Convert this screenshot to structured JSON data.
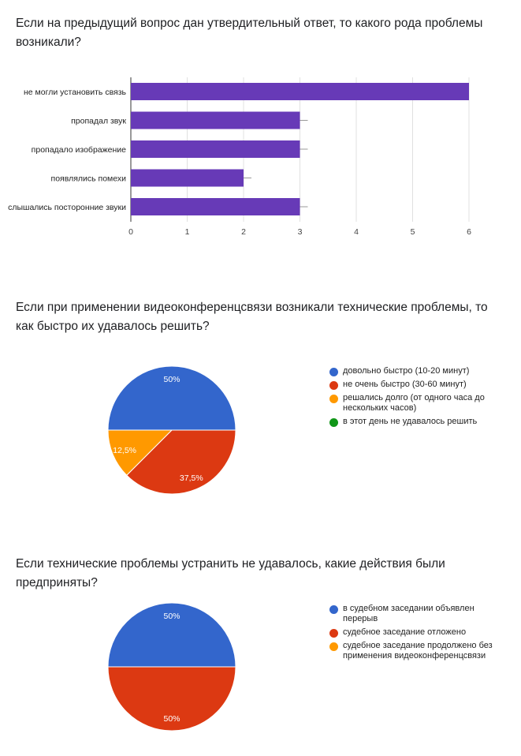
{
  "chart_data": [
    {
      "type": "bar",
      "orientation": "horizontal",
      "title": "Если на предыдущий вопрос дан утвердительный ответ, то какого рода проблемы возникали?",
      "categories": [
        "не могли установить связь",
        "пропадал звук",
        "пропадало изображение",
        "появлялись помехи",
        "слышались посторонние звуки"
      ],
      "values": [
        6,
        3,
        3,
        2,
        3
      ],
      "xlim": [
        0,
        6
      ],
      "xticks": [
        "0",
        "1",
        "2",
        "3",
        "4",
        "5",
        "6"
      ],
      "grid": true,
      "color": "#673ab7"
    },
    {
      "type": "pie",
      "title": "Если при применении видеоконференцсвязи возникали технические проблемы, то как быстро их удавалось решить?",
      "labels": [
        "довольно быстро (10-20 минут)",
        "не очень быстро (30-60 минут)",
        "решались долго (от одного часа до нескольких часов)",
        "в этот день не удавалось решить"
      ],
      "values": [
        50,
        37.5,
        12.5,
        0
      ],
      "slice_labels": [
        "50%",
        "37,5%",
        "12,5%",
        ""
      ],
      "colors": [
        "#3366cc",
        "#dc3912",
        "#ff9900",
        "#109618"
      ],
      "legend_position": "right"
    },
    {
      "type": "pie",
      "title": "Если технические проблемы устранить не удавалось, какие действия были предприняты?",
      "labels": [
        "в судебном заседании объявлен перерыв",
        "судебное заседание отложено",
        "судебное заседание продолжено без применения видеоконференцсвязи"
      ],
      "values": [
        50,
        50,
        0
      ],
      "slice_labels": [
        "50%",
        "50%",
        ""
      ],
      "colors": [
        "#3366cc",
        "#dc3912",
        "#ff9900"
      ],
      "legend_position": "right"
    }
  ]
}
